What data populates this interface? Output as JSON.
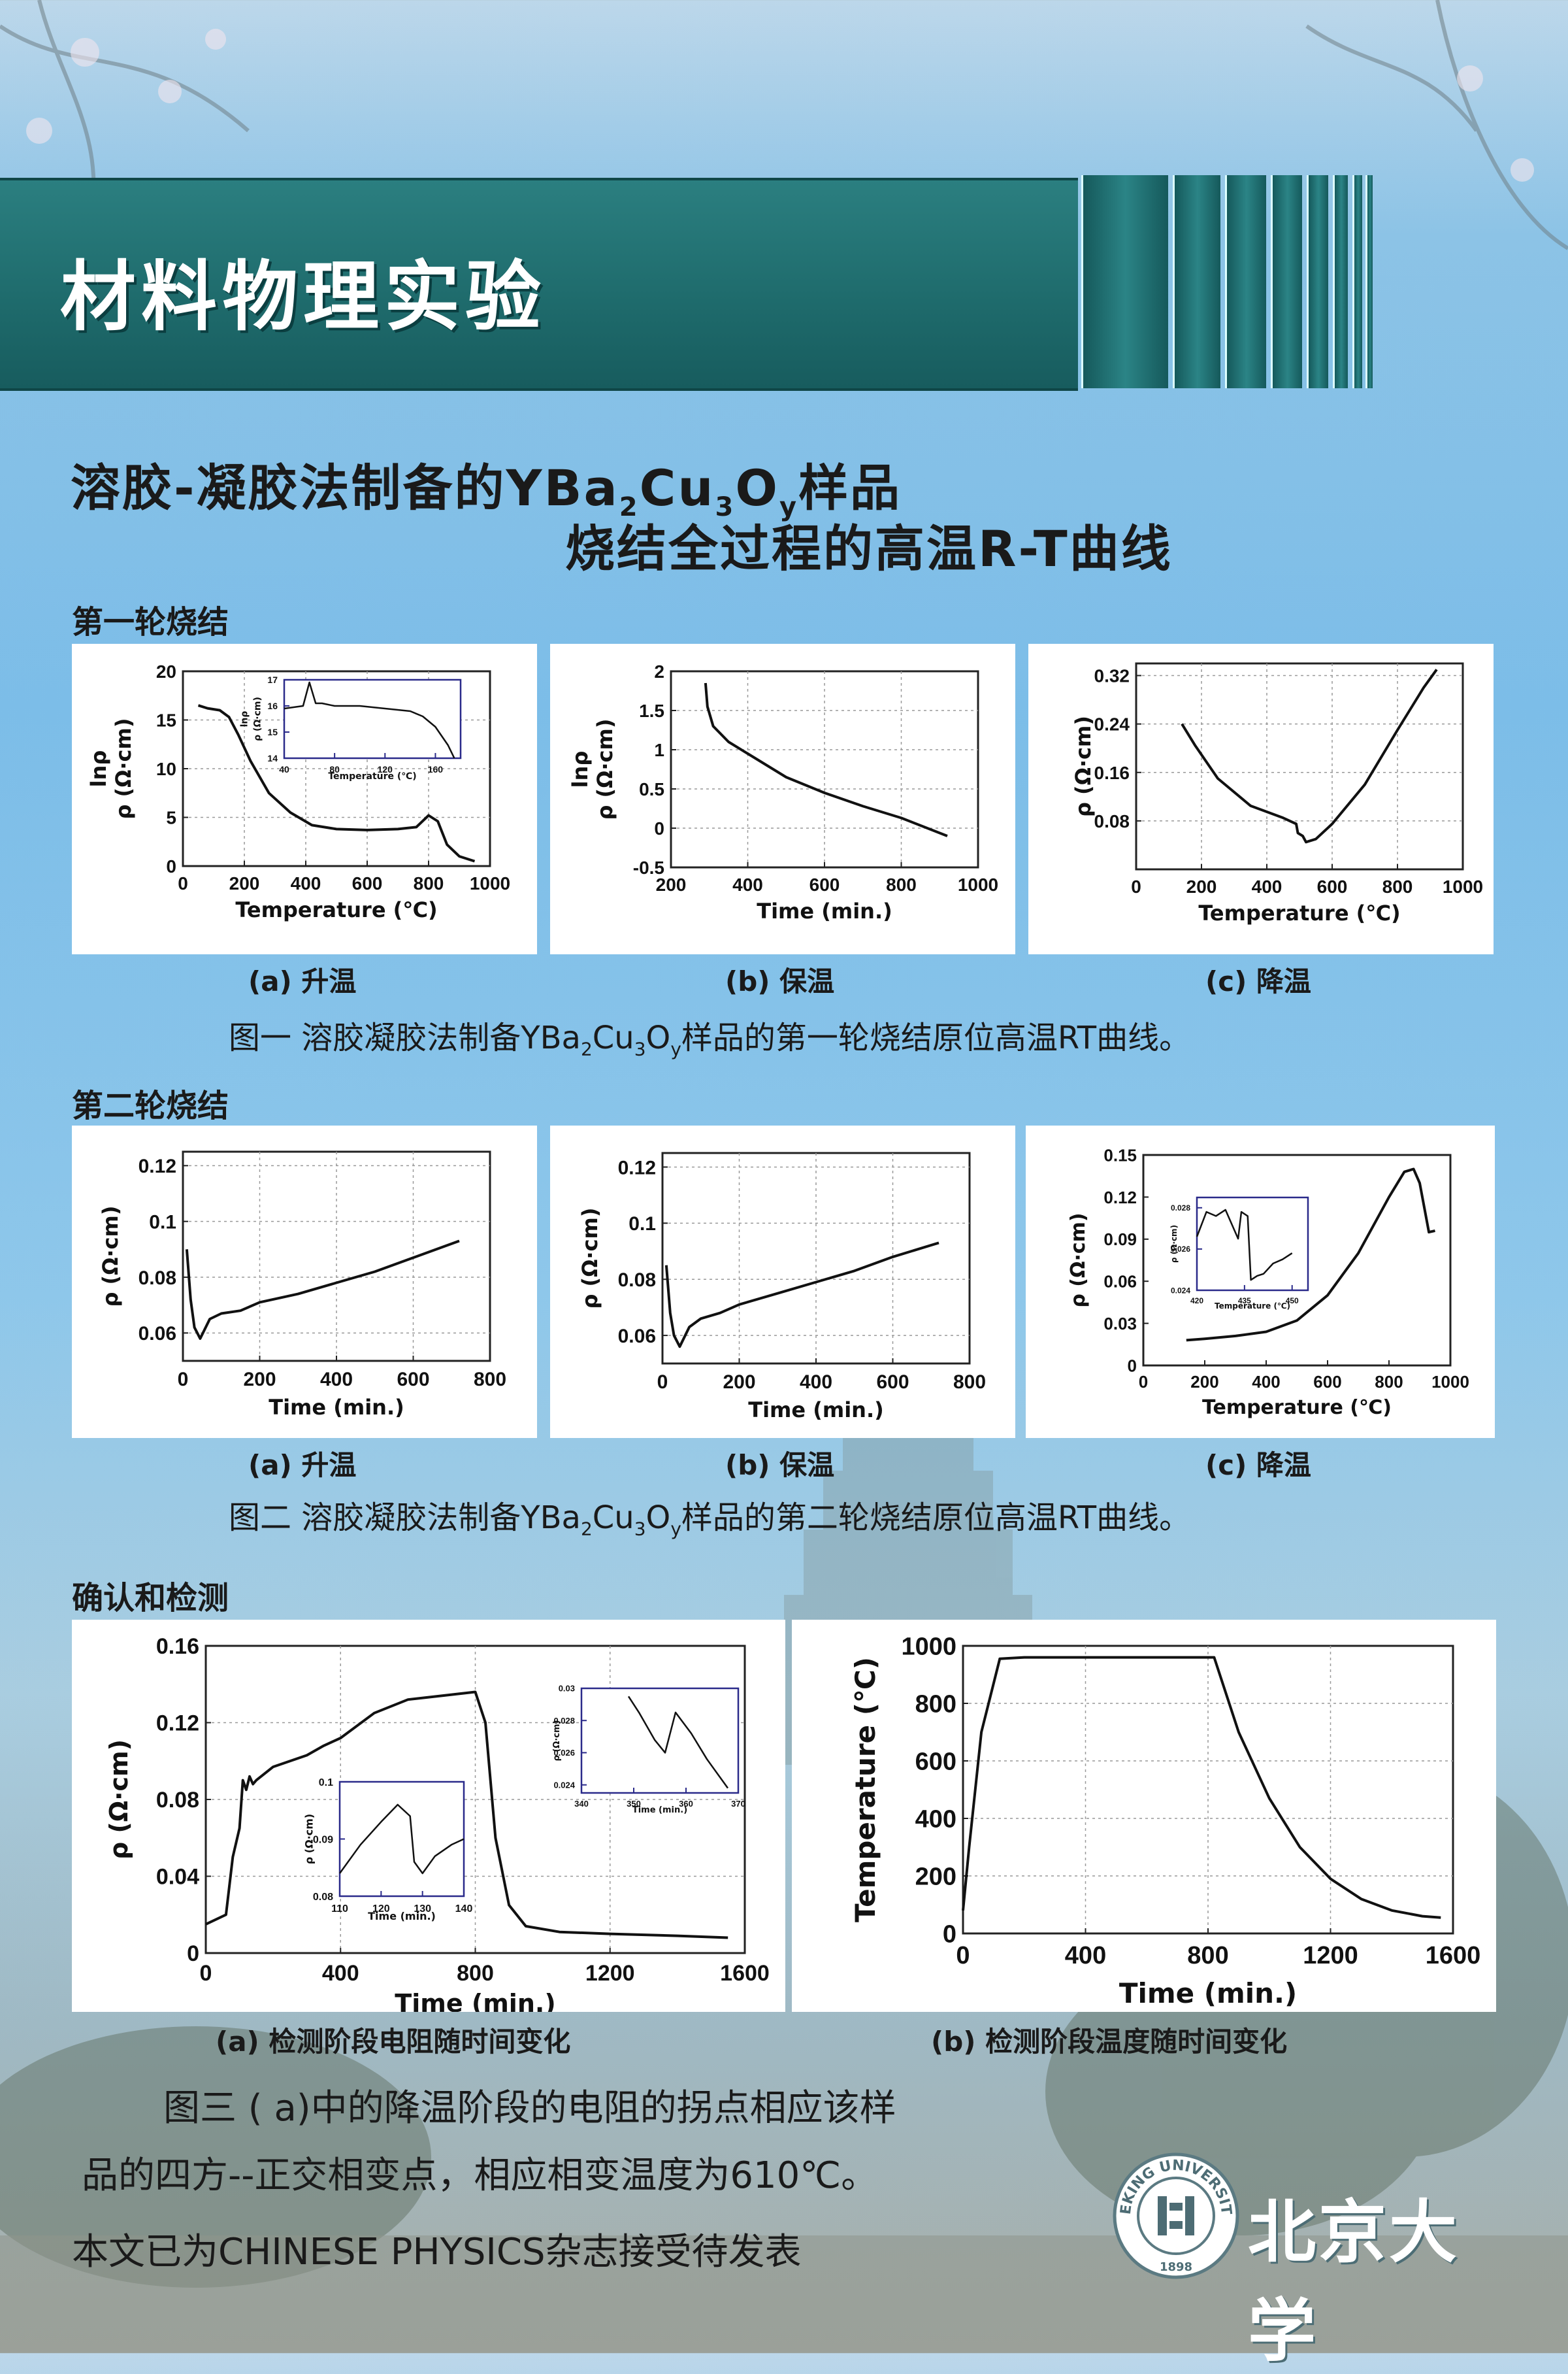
{
  "header": {
    "section_title": "材料物理实验",
    "title_line1_a": "溶胶-凝胶法制备的YBa",
    "title_line1_s1": "2",
    "title_line1_b": "Cu",
    "title_line1_s2": "3",
    "title_line1_c": "O",
    "title_line1_s3": "y",
    "title_line1_d": "样品",
    "title_line2": "烧结全过程的高温R-T曲线"
  },
  "sections": {
    "first": "第一轮烧结",
    "second": "第二轮烧结",
    "third": "确认和检测"
  },
  "sublabels": {
    "r1a": "(a) 升温",
    "r1b": "(b) 保温",
    "r1c": "(c) 降温",
    "r2a": "(a) 升温",
    "r2b": "(b) 保温",
    "r2c": "(c) 降温",
    "r3a": "(a) 检测阶段电阻随时间变化",
    "r3b": "(b) 检测阶段温度随时间变化"
  },
  "captions": {
    "fig1_a": "图一  溶胶凝胶法制备YBa",
    "fig1_s1": "2",
    "fig1_b": "Cu",
    "fig1_s2": "3",
    "fig1_c": "O",
    "fig1_s3": "y",
    "fig1_d": "样品的第一轮烧结原位高温RT曲线。",
    "fig2_a": "图二  溶胶凝胶法制备YBa",
    "fig2_s1": "2",
    "fig2_b": "Cu",
    "fig2_s2": "3",
    "fig2_c": "O",
    "fig2_s3": "y",
    "fig2_d": "样品的第二轮烧结原位高温RT曲线。",
    "fig3_line1": "图三 ( a)中的降温阶段的电阻的拐点相应该样",
    "fig3_line2": "品的四方--正交相变点，相应相变温度为610℃。",
    "note": "本文已为CHINESE PHYSICS杂志接受待发表"
  },
  "logo": {
    "seal_text": "PEKING UNIVERSITY",
    "seal_year": "1898",
    "name": "北京大学"
  },
  "colors": {
    "header_band": "#1f6c6d",
    "background": "#7cbde8",
    "plot_line": "#111111",
    "inset_border": "#2a2a8a"
  },
  "chart_data": [
    {
      "id": "c1",
      "type": "line",
      "xlabel": "Temperature (℃)",
      "ylabel": "lnρ\nρ (Ω·cm)",
      "xlim": [
        0,
        1000
      ],
      "ylim": [
        0,
        20
      ],
      "xticks": [
        0,
        200,
        400,
        600,
        800,
        1000
      ],
      "yticks": [
        0,
        5,
        10,
        15,
        20
      ],
      "x": [
        50,
        80,
        120,
        150,
        180,
        220,
        280,
        350,
        420,
        500,
        600,
        700,
        760,
        800,
        830,
        860,
        900,
        950
      ],
      "y": [
        16.5,
        16.2,
        16.0,
        15.3,
        13.5,
        10.8,
        7.5,
        5.5,
        4.2,
        3.8,
        3.7,
        3.8,
        4.0,
        5.2,
        4.6,
        2.2,
        1.0,
        0.5
      ],
      "grid": true,
      "inset": {
        "xlabel": "Temperature (℃)",
        "ylabel": "lnρ\nρ (Ω·cm)",
        "xlim": [
          40,
          180
        ],
        "ylim": [
          14,
          17
        ],
        "xticks": [
          40,
          80,
          120,
          160
        ],
        "yticks": [
          14,
          15,
          16,
          17
        ],
        "x": [
          40,
          55,
          60,
          65,
          70,
          80,
          100,
          120,
          140,
          150,
          160,
          170,
          175
        ],
        "y": [
          15.9,
          16.0,
          16.9,
          16.1,
          16.1,
          16.0,
          16.0,
          15.9,
          15.8,
          15.6,
          15.2,
          14.5,
          14.0
        ]
      }
    },
    {
      "id": "c2",
      "type": "line",
      "xlabel": "Time (min.)",
      "ylabel": "lnρ\nρ (Ω·cm)",
      "xlim": [
        200,
        1000
      ],
      "ylim": [
        -0.5,
        2
      ],
      "xticks": [
        200,
        400,
        600,
        800,
        1000
      ],
      "yticks": [
        -0.5,
        0,
        0.5,
        1,
        1.5,
        2
      ],
      "x": [
        290,
        295,
        310,
        350,
        400,
        500,
        600,
        700,
        800,
        920
      ],
      "y": [
        1.85,
        1.55,
        1.3,
        1.1,
        0.95,
        0.65,
        0.45,
        0.28,
        0.13,
        -0.1
      ],
      "grid": true
    },
    {
      "id": "c3",
      "type": "line",
      "xlabel": "Temperature (℃)",
      "ylabel": "ρ (Ω·cm)",
      "xlim": [
        0,
        1000
      ],
      "ylim": [
        0,
        0.34
      ],
      "xticks": [
        0,
        200,
        400,
        600,
        800,
        1000
      ],
      "yticks": [
        0.08,
        0.16,
        0.24,
        0.32
      ],
      "x": [
        140,
        180,
        250,
        350,
        450,
        490,
        495,
        510,
        520,
        550,
        600,
        700,
        800,
        880,
        920
      ],
      "y": [
        0.24,
        0.205,
        0.15,
        0.105,
        0.085,
        0.075,
        0.06,
        0.055,
        0.045,
        0.05,
        0.075,
        0.14,
        0.23,
        0.3,
        0.33
      ],
      "grid": true
    },
    {
      "id": "c4",
      "type": "line",
      "xlabel": "Time (min.)",
      "ylabel": "ρ (Ω·cm)",
      "xlim": [
        0,
        800
      ],
      "ylim": [
        0.05,
        0.125
      ],
      "xticks": [
        0,
        200,
        400,
        600,
        800
      ],
      "yticks": [
        0.06,
        0.08,
        0.1,
        0.12
      ],
      "x": [
        10,
        20,
        30,
        45,
        70,
        100,
        150,
        200,
        300,
        400,
        500,
        600,
        720
      ],
      "y": [
        0.09,
        0.072,
        0.062,
        0.058,
        0.065,
        0.067,
        0.068,
        0.071,
        0.074,
        0.078,
        0.082,
        0.087,
        0.093
      ],
      "grid": true
    },
    {
      "id": "c5",
      "type": "line",
      "xlabel": "Time (min.)",
      "ylabel": "ρ (Ω·cm)",
      "xlim": [
        0,
        800
      ],
      "ylim": [
        0.05,
        0.125
      ],
      "xticks": [
        0,
        200,
        400,
        600,
        800
      ],
      "yticks": [
        0.06,
        0.08,
        0.1,
        0.12
      ],
      "x": [
        10,
        20,
        30,
        45,
        70,
        100,
        150,
        200,
        300,
        400,
        500,
        600,
        720
      ],
      "y": [
        0.085,
        0.068,
        0.06,
        0.056,
        0.063,
        0.066,
        0.068,
        0.071,
        0.075,
        0.079,
        0.083,
        0.088,
        0.093
      ],
      "grid": true
    },
    {
      "id": "c6",
      "type": "line",
      "xlabel": "Temperature (℃)",
      "ylabel": "ρ (Ω·cm)",
      "xlim": [
        0,
        1000
      ],
      "ylim": [
        0,
        0.15
      ],
      "xticks": [
        0,
        200,
        400,
        600,
        800,
        1000
      ],
      "yticks": [
        0,
        0.03,
        0.06,
        0.09,
        0.12,
        0.15
      ],
      "x": [
        140,
        200,
        300,
        400,
        450,
        500,
        600,
        700,
        800,
        850,
        880,
        900,
        930,
        950
      ],
      "y": [
        0.018,
        0.019,
        0.021,
        0.024,
        0.028,
        0.032,
        0.05,
        0.08,
        0.12,
        0.138,
        0.14,
        0.13,
        0.095,
        0.096
      ],
      "grid": false,
      "inset": {
        "xlabel": "Temperature (℃)",
        "ylabel": "ρ (Ω·cm)",
        "xlim": [
          420,
          455
        ],
        "ylim": [
          0.024,
          0.0285
        ],
        "xticks": [
          420,
          435,
          450
        ],
        "yticks": [
          0.024,
          0.026,
          0.028
        ],
        "x": [
          420,
          423,
          426,
          429,
          431,
          433,
          434,
          436,
          437,
          439,
          441,
          444,
          447,
          450
        ],
        "y": [
          0.0266,
          0.0278,
          0.0276,
          0.0279,
          0.0272,
          0.0265,
          0.0278,
          0.0276,
          0.0245,
          0.0247,
          0.0248,
          0.0253,
          0.0255,
          0.0258
        ]
      }
    },
    {
      "id": "c7",
      "type": "line",
      "xlabel": "Time (min.)",
      "ylabel": "ρ (Ω·cm)",
      "xlim": [
        0,
        1600
      ],
      "ylim": [
        0,
        0.16
      ],
      "xticks": [
        0,
        400,
        800,
        1200,
        1600
      ],
      "yticks": [
        0,
        0.04,
        0.08,
        0.12,
        0.16
      ],
      "x": [
        0,
        60,
        80,
        100,
        110,
        120,
        130,
        140,
        150,
        200,
        300,
        350,
        400,
        500,
        600,
        700,
        800,
        830,
        860,
        900,
        950,
        1050,
        1200,
        1400,
        1550
      ],
      "y": [
        0.015,
        0.02,
        0.05,
        0.065,
        0.09,
        0.085,
        0.092,
        0.088,
        0.09,
        0.097,
        0.103,
        0.108,
        0.112,
        0.125,
        0.132,
        0.134,
        0.136,
        0.12,
        0.06,
        0.025,
        0.014,
        0.011,
        0.01,
        0.009,
        0.008
      ],
      "grid": true,
      "insets": [
        {
          "xlim": [
            110,
            140
          ],
          "ylim": [
            0.08,
            0.1
          ],
          "xticks": [
            110,
            120,
            130,
            140
          ],
          "yticks": [
            0.08,
            0.09,
            0.1
          ],
          "xlabel": "Time (min.)",
          "ylabel": "ρ (Ω·cm)",
          "x": [
            110,
            115,
            120,
            124,
            127,
            128,
            130,
            133,
            137,
            140
          ],
          "y": [
            0.084,
            0.089,
            0.093,
            0.096,
            0.094,
            0.086,
            0.084,
            0.087,
            0.089,
            0.09
          ]
        },
        {
          "xlim": [
            340,
            370
          ],
          "ylim": [
            0.0235,
            0.03
          ],
          "xticks": [
            340,
            350,
            360,
            370
          ],
          "yticks": [
            0.024,
            0.026,
            0.028,
            0.03
          ],
          "xlabel": "Time (min.)",
          "ylabel": "ρ (Ω·cm)",
          "x": [
            349,
            351,
            354,
            356,
            358,
            361,
            364,
            368
          ],
          "y": [
            0.0295,
            0.0285,
            0.0268,
            0.026,
            0.0285,
            0.0272,
            0.0256,
            0.0238
          ]
        }
      ]
    },
    {
      "id": "c8",
      "type": "line",
      "xlabel": "Time (min.)",
      "ylabel": "Temperature (℃)",
      "xlim": [
        0,
        1600
      ],
      "ylim": [
        0,
        1000
      ],
      "xticks": [
        0,
        400,
        800,
        1200,
        1600
      ],
      "yticks": [
        0,
        200,
        400,
        600,
        800,
        1000
      ],
      "x": [
        0,
        20,
        60,
        120,
        200,
        400,
        600,
        820,
        900,
        1000,
        1100,
        1200,
        1300,
        1400,
        1500,
        1560
      ],
      "y": [
        80,
        300,
        700,
        955,
        960,
        960,
        960,
        960,
        700,
        470,
        300,
        190,
        120,
        80,
        60,
        55
      ],
      "grid": true
    }
  ]
}
